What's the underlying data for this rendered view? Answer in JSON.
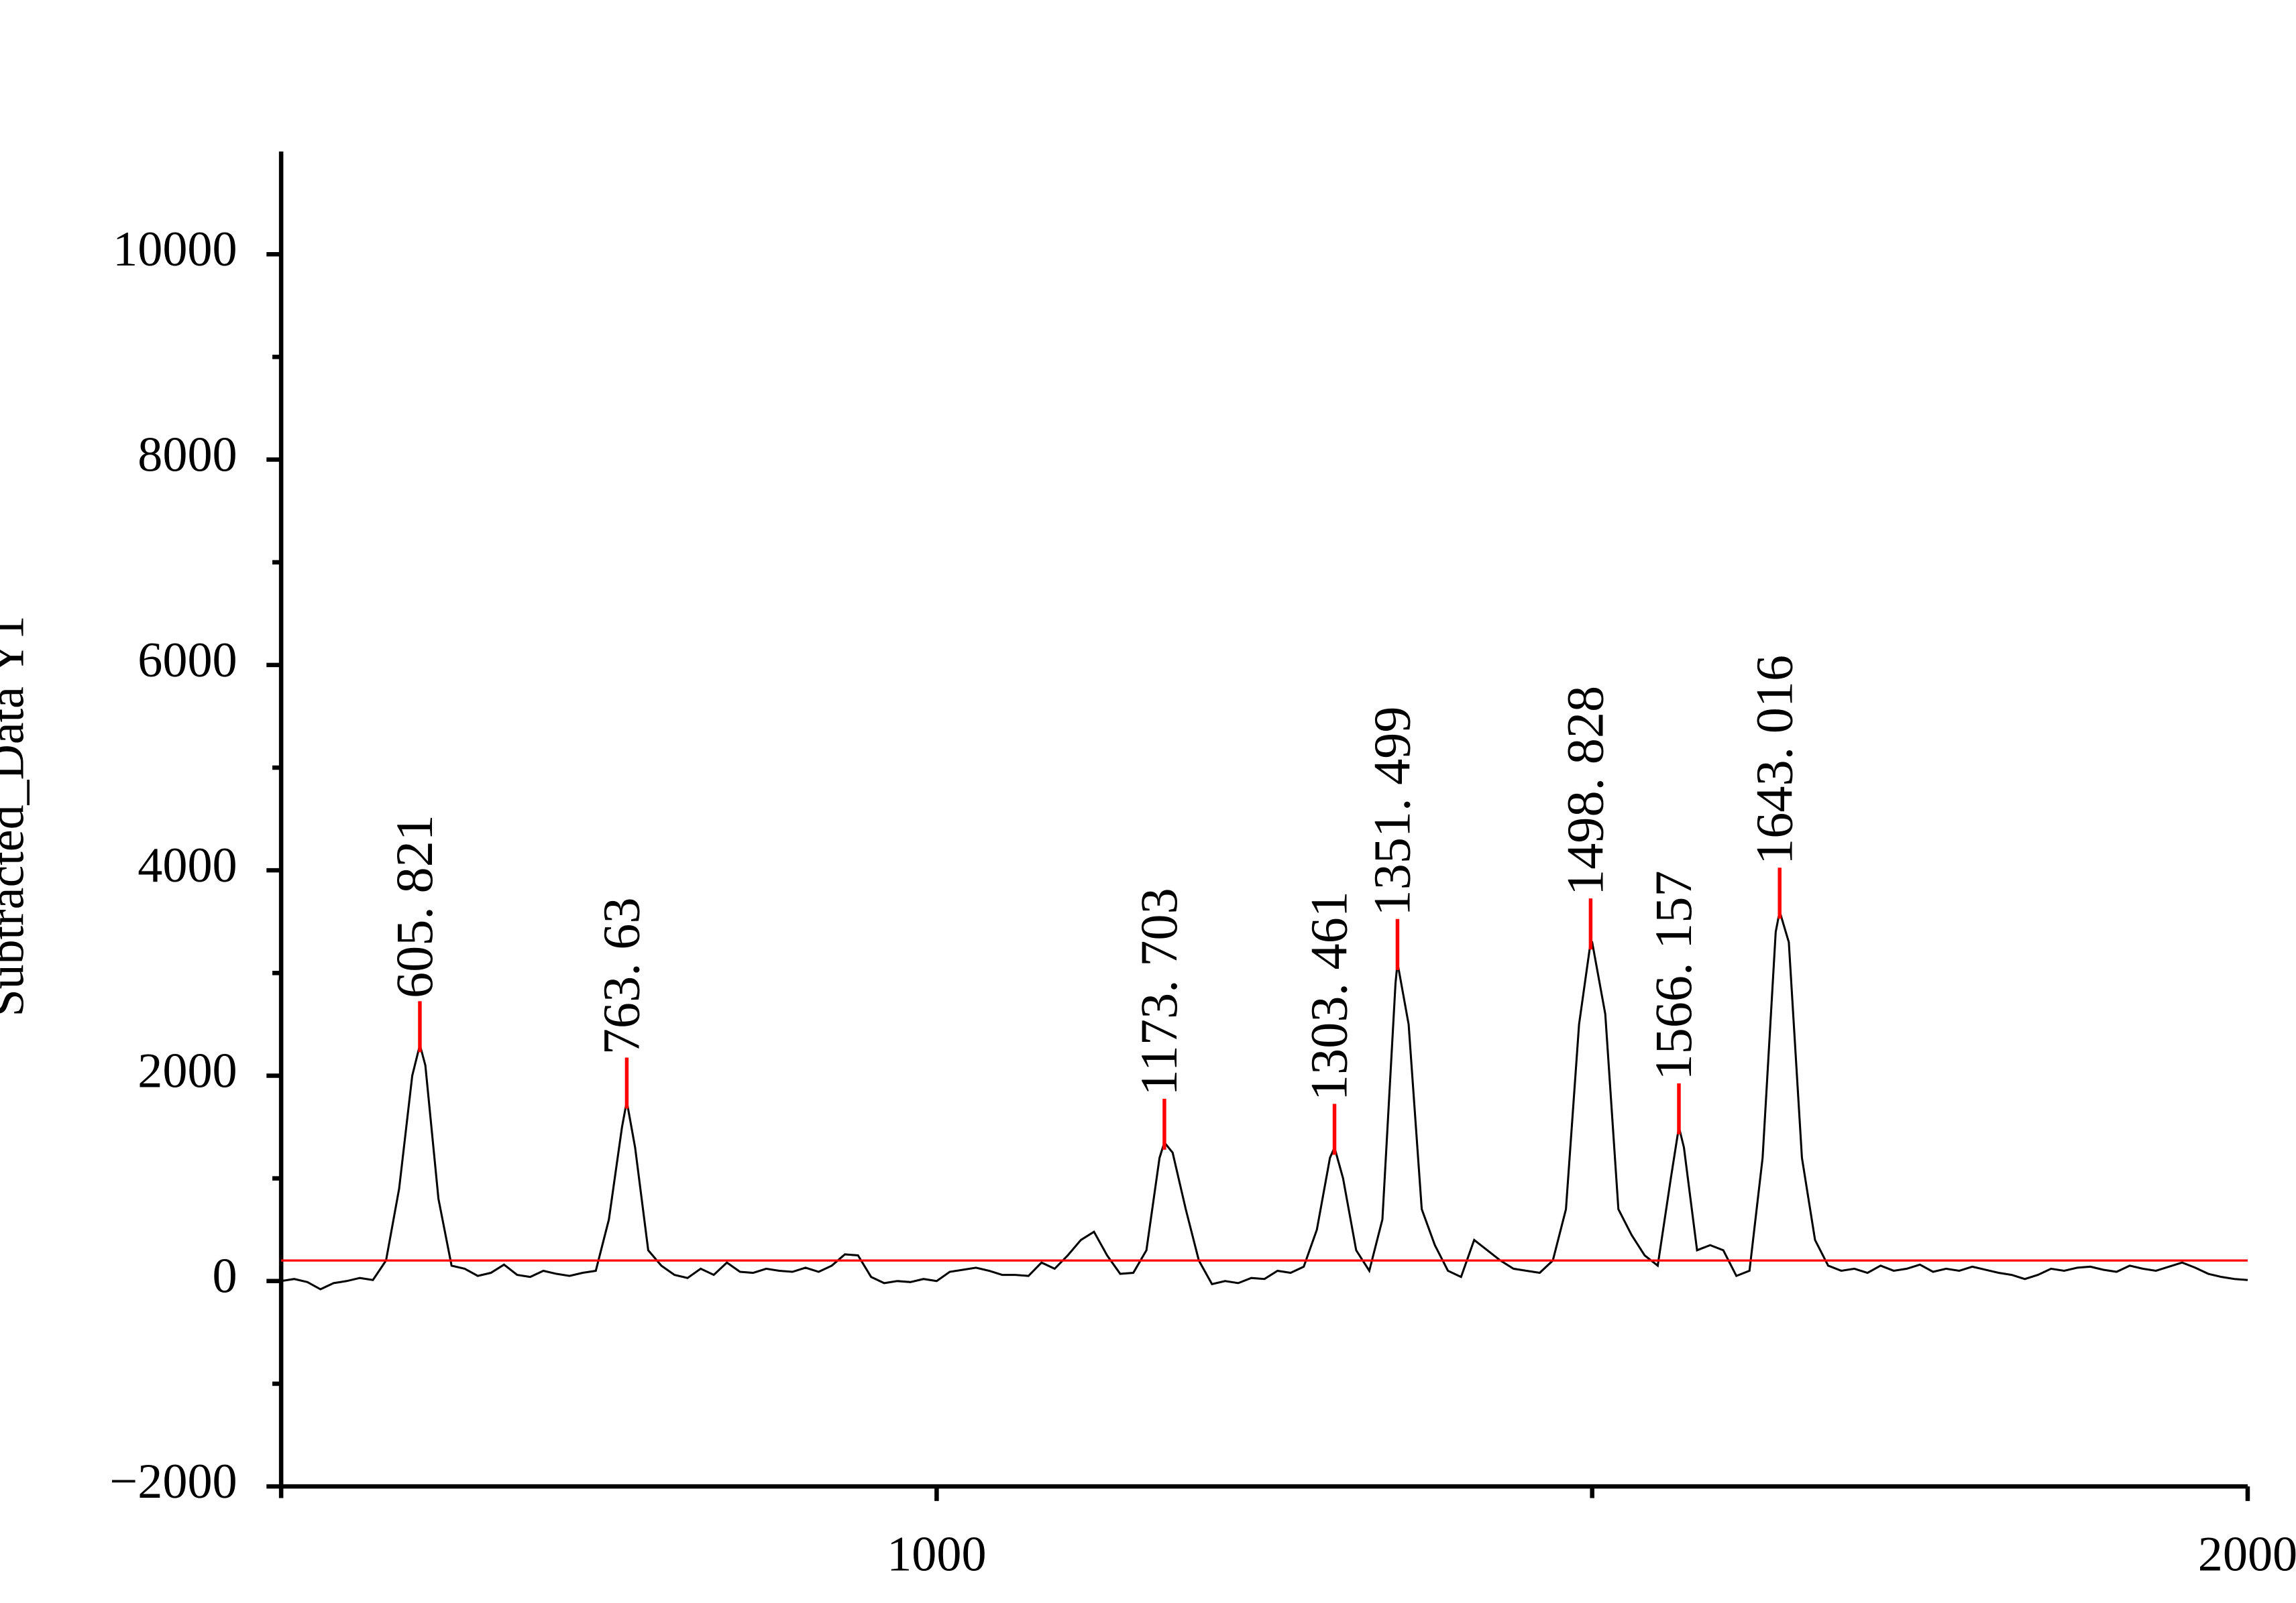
{
  "chart_data": {
    "type": "line",
    "ylabel": "Subtracted_Data Y1",
    "xlim": [
      500,
      2000
    ],
    "xticks": [
      1000,
      2000
    ],
    "xminor_ticks": [
      500,
      1500
    ],
    "ylim": [
      -2000,
      11000
    ],
    "yticks": [
      {
        "value": -2000,
        "label": "−2000"
      },
      0,
      2000,
      4000,
      6000,
      8000,
      10000
    ],
    "yminor_ticks": [
      -1000,
      1000,
      3000,
      5000,
      7000,
      9000
    ],
    "color": "#000000",
    "baseline": 200,
    "baseline_color": "#ff0000",
    "x": [
      500,
      510,
      520,
      530,
      540,
      550,
      560,
      570,
      580,
      590,
      600,
      605.821,
      610,
      620,
      630,
      640,
      650,
      660,
      670,
      680,
      690,
      700,
      710,
      720,
      730,
      740,
      750,
      760,
      763.63,
      770,
      780,
      790,
      800,
      810,
      820,
      830,
      840,
      850,
      860,
      870,
      880,
      890,
      900,
      910,
      920,
      930,
      940,
      950,
      960,
      970,
      980,
      990,
      1000,
      1010,
      1020,
      1030,
      1040,
      1050,
      1060,
      1070,
      1080,
      1090,
      1100,
      1110,
      1120,
      1130,
      1140,
      1150,
      1160,
      1170,
      1173.703,
      1180,
      1190,
      1200,
      1210,
      1220,
      1230,
      1240,
      1250,
      1260,
      1270,
      1280,
      1290,
      1300,
      1303.461,
      1310,
      1320,
      1330,
      1340,
      1350,
      1351.499,
      1360,
      1370,
      1380,
      1390,
      1400,
      1410,
      1420,
      1430,
      1440,
      1450,
      1460,
      1470,
      1480,
      1490,
      1498.828,
      1500,
      1510,
      1520,
      1530,
      1540,
      1550,
      1560,
      1566.157,
      1570,
      1580,
      1590,
      1600,
      1610,
      1620,
      1630,
      1640,
      1643.016,
      1650,
      1660,
      1670,
      1680,
      1690,
      1700,
      1710,
      1720,
      1730,
      1740,
      1750,
      1760,
      1770,
      1780,
      1790,
      1800,
      1810,
      1820,
      1830,
      1840,
      1850,
      1860,
      1870,
      1880,
      1890,
      1900,
      1910,
      1920,
      1930,
      1940,
      1950,
      1960,
      1970,
      1980,
      1990,
      2000
    ],
    "values": [
      0,
      20,
      -10,
      -80,
      -20,
      0,
      30,
      10,
      200,
      900,
      2000,
      2300,
      2100,
      800,
      150,
      120,
      50,
      80,
      160,
      60,
      40,
      100,
      70,
      50,
      80,
      100,
      600,
      1500,
      1750,
      1300,
      300,
      150,
      60,
      30,
      120,
      60,
      180,
      90,
      80,
      120,
      100,
      90,
      130,
      90,
      150,
      260,
      250,
      40,
      -20,
      0,
      -10,
      20,
      0,
      90,
      110,
      130,
      100,
      60,
      60,
      50,
      180,
      120,
      250,
      400,
      480,
      250,
      70,
      80,
      300,
      1200,
      1350,
      1250,
      700,
      200,
      -30,
      0,
      -20,
      30,
      20,
      100,
      80,
      140,
      500,
      1200,
      1300,
      1000,
      300,
      100,
      600,
      2900,
      3100,
      2500,
      700,
      350,
      100,
      40,
      400,
      300,
      200,
      120,
      100,
      80,
      200,
      700,
      2500,
      3300,
      3300,
      2600,
      700,
      450,
      250,
      150,
      1000,
      1500,
      1300,
      300,
      350,
      300,
      50,
      100,
      1200,
      3400,
      3600,
      3300,
      1200,
      400,
      150,
      100,
      120,
      80,
      150,
      100,
      120,
      160,
      90,
      120,
      100,
      140,
      110,
      80,
      60,
      20,
      60,
      120,
      100,
      130,
      140,
      110,
      90,
      150,
      120,
      100,
      140,
      180,
      130,
      70,
      40,
      20,
      10
    ],
    "peaks": [
      {
        "x": 605.821,
        "y": 2300,
        "label": "605. 821"
      },
      {
        "x": 763.63,
        "y": 1750,
        "label": "763. 63"
      },
      {
        "x": 1173.703,
        "y": 1350,
        "label": "1173. 703"
      },
      {
        "x": 1303.461,
        "y": 1300,
        "label": "1303. 461"
      },
      {
        "x": 1351.499,
        "y": 3100,
        "label": "1351. 499"
      },
      {
        "x": 1498.828,
        "y": 3300,
        "label": "1498. 828"
      },
      {
        "x": 1566.157,
        "y": 1500,
        "label": "1566. 157"
      },
      {
        "x": 1643.016,
        "y": 3600,
        "label": "1643. 016"
      }
    ],
    "peak_color": "#ff0000"
  }
}
